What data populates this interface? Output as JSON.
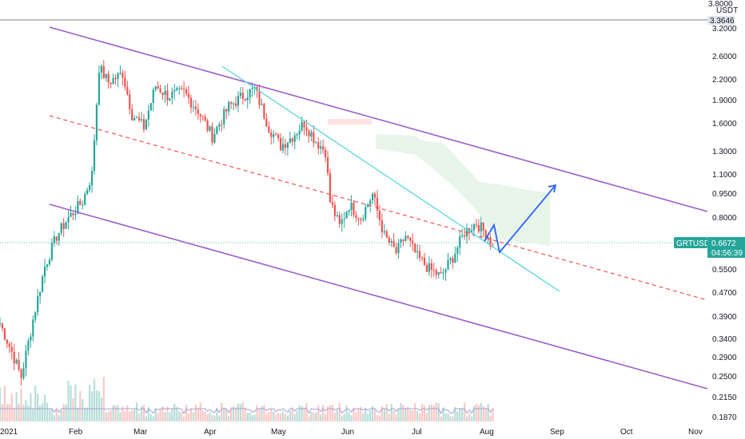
{
  "chart_data": {
    "type": "candlestick",
    "symbol": "GRTUSDT",
    "currency": "USDT",
    "last_price": "0.6672",
    "countdown": "04:56:39",
    "horizontal_level": "3.3646",
    "price_scale": "log",
    "y_ticks": [
      "3.8000",
      "3.2000",
      "2.6000",
      "2.2000",
      "1.9000",
      "1.6000",
      "1.3000",
      "1.1000",
      "0.9500",
      "0.8000",
      "0.6672",
      "0.5500",
      "0.4700",
      "0.3900",
      "0.3400",
      "0.2900",
      "0.2500",
      "0.2150",
      "0.1870"
    ],
    "x_ticks": [
      "2021",
      "Feb",
      "Mar",
      "Apr",
      "May",
      "Jun",
      "Jul",
      "Aug",
      "Sep",
      "Oct",
      "Nov"
    ],
    "colors": {
      "up": "#26a69a",
      "down": "#ef5350",
      "channel": "#9c5fc7",
      "midline": "#ef5350",
      "trendline": "#55d6de",
      "projection": "#2962ff",
      "volume_ma": "#a89fd4",
      "cloud": "#e8f5e9",
      "last_price_tag": "#26a69a"
    },
    "price_path": [
      [
        "2021-01-01",
        0.37
      ],
      [
        "2021-01-06",
        0.3
      ],
      [
        "2021-01-10",
        0.25
      ],
      [
        "2021-01-15",
        0.38
      ],
      [
        "2021-01-20",
        0.56
      ],
      [
        "2021-01-25",
        0.7
      ],
      [
        "2021-01-30",
        0.8
      ],
      [
        "2021-02-05",
        0.9
      ],
      [
        "2021-02-09",
        1.1
      ],
      [
        "2021-02-12",
        2.4
      ],
      [
        "2021-02-16",
        2.15
      ],
      [
        "2021-02-22",
        2.3
      ],
      [
        "2021-02-26",
        1.7
      ],
      [
        "2021-03-03",
        1.55
      ],
      [
        "2021-03-08",
        2.1
      ],
      [
        "2021-03-13",
        1.95
      ],
      [
        "2021-03-20",
        2.0
      ],
      [
        "2021-03-26",
        1.75
      ],
      [
        "2021-04-01",
        1.45
      ],
      [
        "2021-04-08",
        1.8
      ],
      [
        "2021-04-14",
        1.95
      ],
      [
        "2021-04-19",
        2.05
      ],
      [
        "2021-04-25",
        1.55
      ],
      [
        "2021-04-30",
        1.35
      ],
      [
        "2021-05-05",
        1.45
      ],
      [
        "2021-05-10",
        1.6
      ],
      [
        "2021-05-15",
        1.4
      ],
      [
        "2021-05-19",
        1.3
      ],
      [
        "2021-05-21",
        0.9
      ],
      [
        "2021-05-25",
        0.75
      ],
      [
        "2021-05-29",
        0.88
      ],
      [
        "2021-06-03",
        0.8
      ],
      [
        "2021-06-08",
        0.95
      ],
      [
        "2021-06-13",
        0.7
      ],
      [
        "2021-06-18",
        0.62
      ],
      [
        "2021-06-22",
        0.7
      ],
      [
        "2021-06-27",
        0.6
      ],
      [
        "2021-07-02",
        0.55
      ],
      [
        "2021-07-07",
        0.52
      ],
      [
        "2021-07-12",
        0.6
      ],
      [
        "2021-07-17",
        0.72
      ],
      [
        "2021-07-22",
        0.77
      ],
      [
        "2021-07-27",
        0.7
      ],
      [
        "2021-08-01",
        0.55
      ],
      [
        "2021-08-06",
        0.5
      ],
      [
        "2021-08-11",
        0.56
      ],
      [
        "2021-08-16",
        0.65
      ],
      [
        "2021-08-20",
        0.6672
      ]
    ]
  }
}
